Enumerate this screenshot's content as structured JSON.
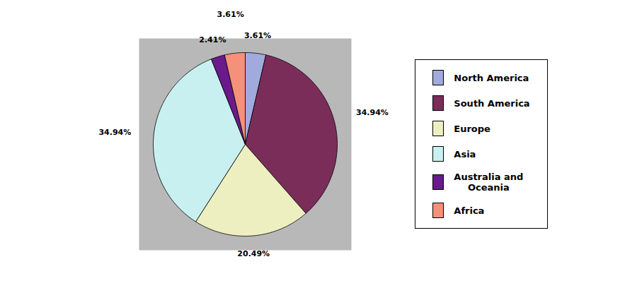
{
  "chart_data": {
    "type": "pie",
    "categories": [
      "North America",
      "South America",
      "Europe",
      "Asia",
      "Australia and\nOceania",
      "Africa"
    ],
    "values": [
      3.61,
      34.94,
      20.49,
      34.94,
      2.41,
      3.61
    ],
    "value_labels": [
      "3.61%",
      "34.94%",
      "20.49%",
      "34.94%",
      "2.41%",
      "3.61%"
    ],
    "colors": [
      "#a0aadd",
      "#7b2d5a",
      "#eeefc0",
      "#c8f0f0",
      "#6a1a8a",
      "#f5907a"
    ],
    "data_labels": true,
    "legend": "right",
    "tick_labels": false
  }
}
